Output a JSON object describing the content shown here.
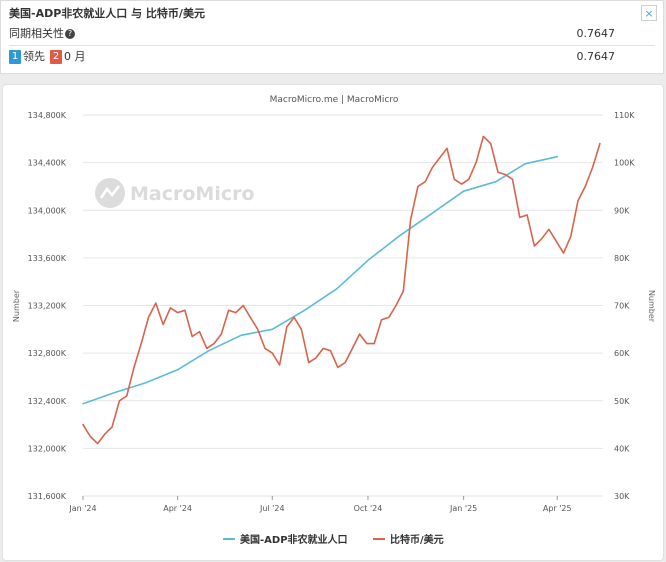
{
  "header": {
    "title": "美国-ADP非农就业人口 与 比特币/美元",
    "close_label": "×"
  },
  "stats": {
    "row1_label": "同期相关性",
    "row1_help_icon": "?",
    "row1_value": "0.7647",
    "row2_badge1": "1",
    "row2_label1": "领先",
    "row2_badge2": "2",
    "row2_label2": "0 月",
    "row2_value": "0.7647"
  },
  "colors": {
    "series_employment": "#5bbcd6",
    "series_btc": "#d9634c",
    "badge_blue": "#2d9ad6",
    "badge_red": "#e05a46"
  },
  "chart_data": {
    "type": "line",
    "title": "MacroMicro.me | MacroMicro",
    "watermark": "MacroMicro",
    "x_ticks": [
      "Jan '24",
      "Apr '24",
      "Jul '24",
      "Oct '24",
      "Jan '25",
      "Apr '25"
    ],
    "x_range": [
      "2024-01-01",
      "2025-05-15"
    ],
    "y_left": {
      "label": "Number",
      "ylim": [
        131600,
        134800
      ],
      "ticks": [
        "131,600K",
        "132,000K",
        "132,400K",
        "132,800K",
        "133,200K",
        "133,600K",
        "134,000K",
        "134,400K",
        "134,800K"
      ]
    },
    "y_right": {
      "label": "Number",
      "ylim": [
        30000,
        110000
      ],
      "ticks": [
        "30K",
        "40K",
        "50K",
        "60K",
        "70K",
        "80K",
        "90K",
        "100K",
        "110K"
      ]
    },
    "grid": true,
    "legend_position": "bottom",
    "series": [
      {
        "name": "美国-ADP非农就业人口",
        "axis": "left",
        "points": [
          [
            "2024-01-01",
            132375
          ],
          [
            "2024-02-01",
            132470
          ],
          [
            "2024-03-01",
            132550
          ],
          [
            "2024-04-01",
            132660
          ],
          [
            "2024-05-01",
            132820
          ],
          [
            "2024-06-01",
            132950
          ],
          [
            "2024-07-01",
            133000
          ],
          [
            "2024-08-01",
            133160
          ],
          [
            "2024-09-01",
            133340
          ],
          [
            "2024-10-01",
            133580
          ],
          [
            "2024-11-01",
            133790
          ],
          [
            "2024-12-01",
            133970
          ],
          [
            "2025-01-01",
            134160
          ],
          [
            "2025-02-01",
            134240
          ],
          [
            "2025-03-01",
            134390
          ],
          [
            "2025-04-01",
            134450
          ]
        ]
      },
      {
        "name": "比特币/美元",
        "axis": "right",
        "points": [
          [
            "2024-01-01",
            45000
          ],
          [
            "2024-01-08",
            42500
          ],
          [
            "2024-01-15",
            41000
          ],
          [
            "2024-01-22",
            43000
          ],
          [
            "2024-01-29",
            44500
          ],
          [
            "2024-02-05",
            50000
          ],
          [
            "2024-02-12",
            51000
          ],
          [
            "2024-02-19",
            57000
          ],
          [
            "2024-02-26",
            62000
          ],
          [
            "2024-03-04",
            67500
          ],
          [
            "2024-03-11",
            70500
          ],
          [
            "2024-03-18",
            66000
          ],
          [
            "2024-03-25",
            69500
          ],
          [
            "2024-04-01",
            68500
          ],
          [
            "2024-04-08",
            69000
          ],
          [
            "2024-04-15",
            63500
          ],
          [
            "2024-04-22",
            64500
          ],
          [
            "2024-04-29",
            61000
          ],
          [
            "2024-05-06",
            62000
          ],
          [
            "2024-05-13",
            64000
          ],
          [
            "2024-05-20",
            69000
          ],
          [
            "2024-05-27",
            68500
          ],
          [
            "2024-06-03",
            70000
          ],
          [
            "2024-06-10",
            67500
          ],
          [
            "2024-06-17",
            65000
          ],
          [
            "2024-06-24",
            61000
          ],
          [
            "2024-07-01",
            60000
          ],
          [
            "2024-07-08",
            57500
          ],
          [
            "2024-07-15",
            65500
          ],
          [
            "2024-07-22",
            67500
          ],
          [
            "2024-07-29",
            65000
          ],
          [
            "2024-08-05",
            58000
          ],
          [
            "2024-08-12",
            59000
          ],
          [
            "2024-08-19",
            61000
          ],
          [
            "2024-08-26",
            60500
          ],
          [
            "2024-09-02",
            57000
          ],
          [
            "2024-09-09",
            58000
          ],
          [
            "2024-09-16",
            61000
          ],
          [
            "2024-09-23",
            64000
          ],
          [
            "2024-09-30",
            62000
          ],
          [
            "2024-10-07",
            62000
          ],
          [
            "2024-10-14",
            67000
          ],
          [
            "2024-10-21",
            67500
          ],
          [
            "2024-10-28",
            70000
          ],
          [
            "2024-11-04",
            73000
          ],
          [
            "2024-11-11",
            88000
          ],
          [
            "2024-11-18",
            95000
          ],
          [
            "2024-11-25",
            96000
          ],
          [
            "2024-12-02",
            99000
          ],
          [
            "2024-12-09",
            101000
          ],
          [
            "2024-12-16",
            103000
          ],
          [
            "2024-12-23",
            96500
          ],
          [
            "2024-12-30",
            95500
          ],
          [
            "2025-01-06",
            96500
          ],
          [
            "2025-01-13",
            100000
          ],
          [
            "2025-01-20",
            105500
          ],
          [
            "2025-01-27",
            104000
          ],
          [
            "2025-02-03",
            98000
          ],
          [
            "2025-02-10",
            97500
          ],
          [
            "2025-02-17",
            96500
          ],
          [
            "2025-02-24",
            88500
          ],
          [
            "2025-03-03",
            89000
          ],
          [
            "2025-03-10",
            82500
          ],
          [
            "2025-03-17",
            84000
          ],
          [
            "2025-03-24",
            86000
          ],
          [
            "2025-03-31",
            83500
          ],
          [
            "2025-04-07",
            81000
          ],
          [
            "2025-04-14",
            84500
          ],
          [
            "2025-04-21",
            92000
          ],
          [
            "2025-04-28",
            95000
          ],
          [
            "2025-05-05",
            99000
          ],
          [
            "2025-05-12",
            104000
          ]
        ]
      }
    ]
  }
}
